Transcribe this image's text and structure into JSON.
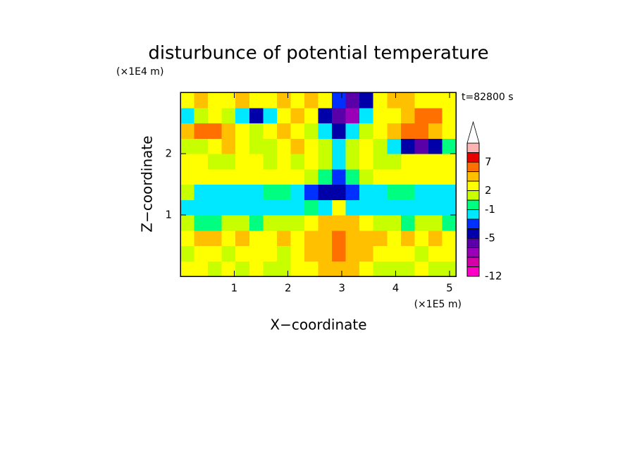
{
  "chart_data": {
    "type": "contour",
    "title": "disturbunce of potential temperature",
    "xlabel": "X−coordinate",
    "ylabel": "Z−coordinate",
    "x_unit": "(×1E5 m)",
    "y_unit": "(×1E4 m)",
    "annotation": "t=82800 s",
    "xlim": [
      0,
      5.12
    ],
    "ylim": [
      0,
      3
    ],
    "xticks": [
      1,
      2,
      3,
      4,
      5
    ],
    "yticks": [
      1,
      2
    ],
    "z": [
      [
        2,
        2,
        0.5,
        2,
        1,
        2,
        0.5,
        1,
        2,
        2,
        3,
        4,
        3,
        2,
        1,
        0.5,
        1,
        2,
        1,
        0.5
      ],
      [
        0.5,
        2,
        2,
        1,
        2,
        2,
        2,
        0.5,
        2,
        3,
        4,
        5,
        4,
        3,
        2,
        2,
        2,
        1,
        2,
        2
      ],
      [
        2.5,
        3,
        3,
        2.5,
        3,
        2,
        2.5,
        3,
        2.5,
        3,
        4,
        5,
        4,
        3,
        3,
        2.5,
        3,
        2.5,
        3,
        2.5
      ],
      [
        0.5,
        -0.5,
        -0.5,
        0.5,
        0.5,
        -0.5,
        0.5,
        0.5,
        1,
        2,
        3,
        4,
        3,
        2,
        1,
        0.5,
        -0.5,
        0.5,
        0.5,
        -0.5
      ],
      [
        -1.5,
        -1.5,
        -1.5,
        -1.5,
        -1.5,
        -1.5,
        -1.5,
        -1.5,
        -1.5,
        -0.5,
        -1.5,
        2,
        -1.5,
        -1.5,
        -1.5,
        -1.5,
        -1.5,
        -1.5,
        -1.5,
        -1.5
      ],
      [
        0.5,
        -1.5,
        -1.5,
        -1.5,
        -1.5,
        -1.5,
        -0.5,
        -0.5,
        -1.5,
        -2.5,
        -4,
        -4,
        -2.5,
        -1.5,
        -1.5,
        -0.5,
        -0.5,
        -1.5,
        -1.5,
        -1.5
      ],
      [
        2.5,
        2.5,
        2.5,
        2.5,
        2.5,
        2.5,
        2.5,
        2.5,
        2.5,
        0.5,
        -0.5,
        -2.5,
        -0.5,
        0.5,
        2.5,
        2.5,
        2.5,
        2.5,
        2.5,
        2.5
      ],
      [
        2.5,
        2.5,
        0.5,
        0.5,
        2.5,
        2.5,
        0.5,
        2.5,
        0.5,
        2.5,
        0.5,
        -1.5,
        0.5,
        2.5,
        0.5,
        0.5,
        2.5,
        2.5,
        2.5,
        2.5
      ],
      [
        0.5,
        0.5,
        2.5,
        4,
        2.5,
        0.5,
        0.5,
        2.5,
        4,
        2.5,
        0.5,
        -1.5,
        0.5,
        2.5,
        0.5,
        -1.5,
        -4,
        -6,
        -4,
        -0.5
      ],
      [
        4,
        6,
        6,
        4,
        2.5,
        0.5,
        2.5,
        4,
        2.5,
        0.5,
        -1.5,
        -4,
        -1.5,
        0.5,
        2.5,
        4,
        6,
        6,
        4,
        2.5
      ],
      [
        -1.5,
        0.5,
        2.5,
        0.5,
        -1.5,
        -4,
        -1.5,
        2.5,
        4,
        2.5,
        -4,
        -6,
        -7,
        -1.5,
        2.5,
        2.5,
        4,
        6,
        6,
        2.5
      ],
      [
        2.5,
        4,
        2.5,
        2.5,
        4,
        2.5,
        2.5,
        4,
        2.5,
        4,
        2.5,
        -2.5,
        -6,
        -4,
        2.5,
        4,
        4,
        2.5,
        2.5,
        2.5
      ]
    ],
    "colorbar": {
      "levels": [
        -12,
        -10,
        -8,
        -6,
        -5,
        -3,
        -2,
        -1,
        0,
        2,
        3,
        5,
        7,
        9,
        11
      ],
      "colors": [
        "#ff00c8",
        "#d400a8",
        "#9a00b8",
        "#5a00a8",
        "#0000a8",
        "#0030ff",
        "#00e8ff",
        "#00ff80",
        "#c8ff00",
        "#ffff00",
        "#ffc000",
        "#ff7000",
        "#e80000",
        "#ffb4b4",
        "#ffffff"
      ],
      "ticks": [
        -12,
        -5,
        -1,
        2,
        7
      ]
    }
  }
}
